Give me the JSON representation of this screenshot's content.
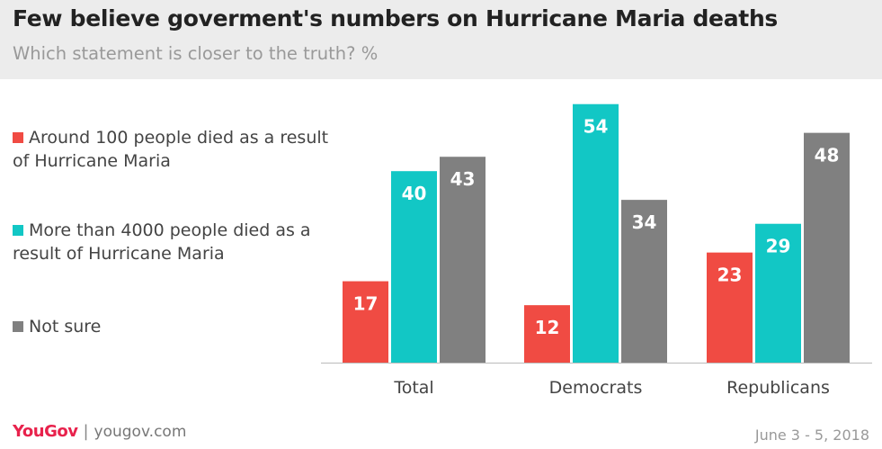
{
  "header": {
    "title": "Few believe goverment's numbers on Hurricane Maria deaths",
    "subtitle": "Which statement is closer to the truth? %"
  },
  "legend": {
    "items": [
      {
        "label": "Around 100 people died as a result of Hurricane Maria",
        "color": "#f04b43"
      },
      {
        "label": "More than 4000 people died as a result of Hurricane Maria",
        "color": "#12c7c5"
      },
      {
        "label": "Not sure",
        "color": "#808080"
      }
    ]
  },
  "footer": {
    "brand": "YouGov",
    "separator": "|",
    "url": "yougov.com",
    "date": "June 3 - 5, 2018"
  },
  "chart_data": {
    "type": "bar",
    "title": "Few believe goverment's numbers on Hurricane Maria deaths",
    "subtitle": "Which statement is closer to the truth? %",
    "categories": [
      "Total",
      "Democrats",
      "Republicans"
    ],
    "series": [
      {
        "name": "Around 100 people died as a result of Hurricane Maria",
        "values": [
          17,
          12,
          23
        ],
        "color": "#f04b43"
      },
      {
        "name": "More than 4000 people died as a result of Hurricane Maria",
        "values": [
          40,
          54,
          29
        ],
        "color": "#12c7c5"
      },
      {
        "name": "Not sure",
        "values": [
          43,
          34,
          48
        ],
        "color": "#808080"
      }
    ],
    "xlabel": "",
    "ylabel": "",
    "ylim": [
      0,
      60
    ],
    "grid": false,
    "legend_position": "left"
  }
}
